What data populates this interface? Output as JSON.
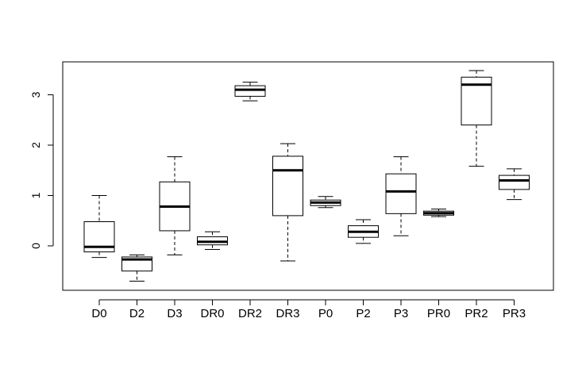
{
  "chart_data": {
    "type": "boxplot",
    "title": "",
    "xlabel": "",
    "ylabel": "",
    "ylim": [
      -0.9,
      3.6
    ],
    "yticks": [
      0,
      1,
      2,
      3
    ],
    "grid": false,
    "categories": [
      "D0",
      "D2",
      "D3",
      "DR0",
      "DR2",
      "DR3",
      "P0",
      "P2",
      "P3",
      "PR0",
      "PR2",
      "PR3"
    ],
    "boxes": [
      {
        "label": "D0",
        "whisker_low": -0.23,
        "q1": -0.12,
        "median": -0.02,
        "q3": 0.48,
        "whisker_high": 1.0
      },
      {
        "label": "D2",
        "whisker_low": -0.7,
        "q1": -0.5,
        "median": -0.27,
        "q3": -0.22,
        "whisker_high": -0.18
      },
      {
        "label": "D3",
        "whisker_low": -0.18,
        "q1": 0.3,
        "median": 0.78,
        "q3": 1.27,
        "whisker_high": 1.77
      },
      {
        "label": "DR0",
        "whisker_low": -0.07,
        "q1": 0.02,
        "median": 0.08,
        "q3": 0.18,
        "whisker_high": 0.28
      },
      {
        "label": "DR2",
        "whisker_low": 2.88,
        "q1": 2.97,
        "median": 3.1,
        "q3": 3.18,
        "whisker_high": 3.25
      },
      {
        "label": "DR3",
        "whisker_low": -0.3,
        "q1": 0.6,
        "median": 1.5,
        "q3": 1.78,
        "whisker_high": 2.03
      },
      {
        "label": "P0",
        "whisker_low": 0.76,
        "q1": 0.8,
        "median": 0.86,
        "q3": 0.91,
        "whisker_high": 0.98
      },
      {
        "label": "P2",
        "whisker_low": 0.05,
        "q1": 0.17,
        "median": 0.28,
        "q3": 0.4,
        "whisker_high": 0.52
      },
      {
        "label": "P3",
        "whisker_low": 0.2,
        "q1": 0.64,
        "median": 1.08,
        "q3": 1.43,
        "whisker_high": 1.77
      },
      {
        "label": "PR0",
        "whisker_low": 0.58,
        "q1": 0.61,
        "median": 0.65,
        "q3": 0.69,
        "whisker_high": 0.73
      },
      {
        "label": "PR2",
        "whisker_low": 1.58,
        "q1": 2.4,
        "median": 3.2,
        "q3": 3.35,
        "whisker_high": 3.48
      },
      {
        "label": "PR3",
        "whisker_low": 0.92,
        "q1": 1.12,
        "median": 1.3,
        "q3": 1.4,
        "whisker_high": 1.53
      }
    ]
  }
}
